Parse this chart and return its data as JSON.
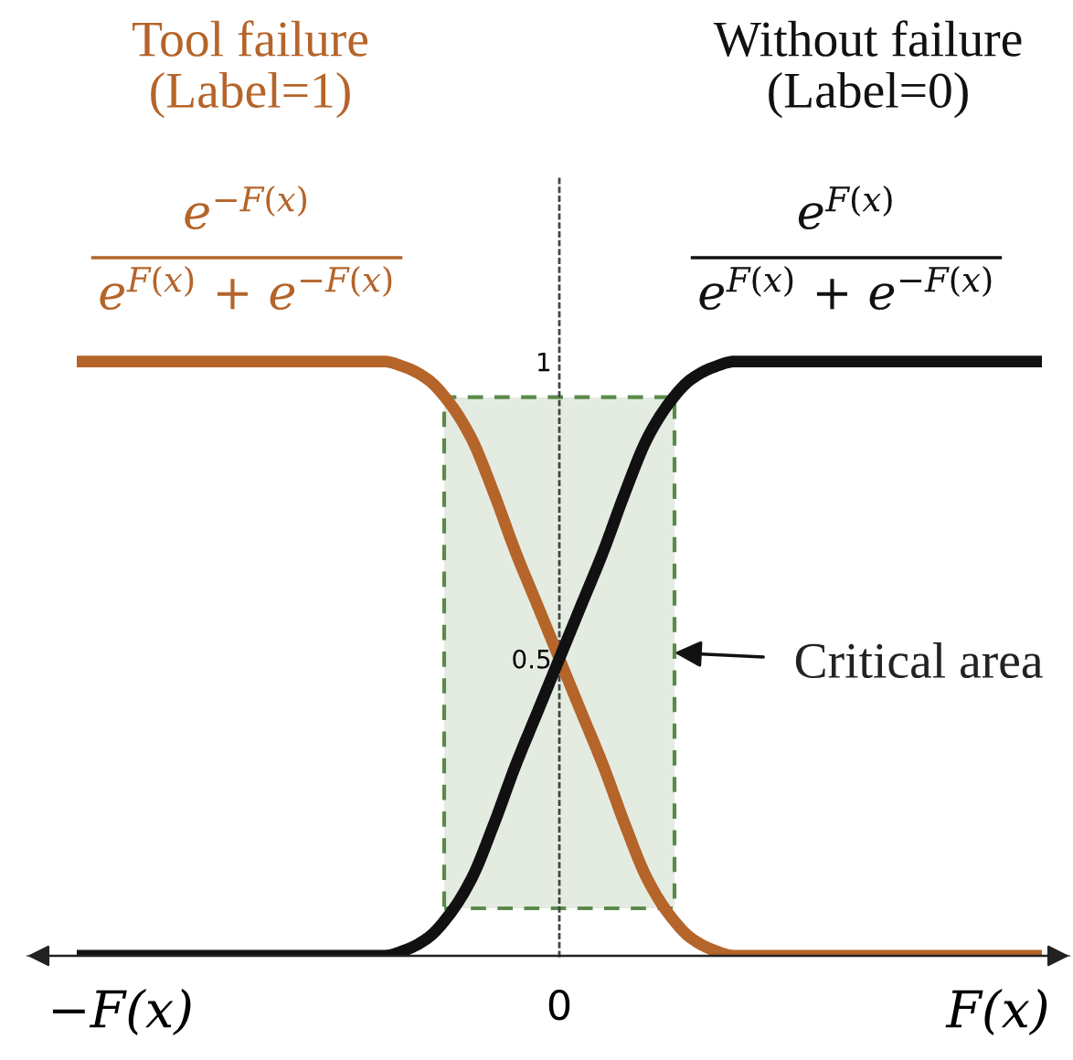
{
  "chart_data": {
    "type": "line",
    "categories": [
      null,
      null,
      "−F(x)",
      null,
      null,
      null,
      null,
      null,
      null,
      null,
      null,
      null,
      null,
      null,
      null,
      null,
      null,
      null,
      null,
      null,
      null,
      null,
      "0",
      null,
      null,
      null,
      null,
      null,
      null,
      null,
      null,
      null,
      null,
      null,
      null,
      null,
      null,
      null,
      null,
      null,
      null,
      null,
      "F(x)",
      null,
      null
    ],
    "series": [
      {
        "name": "Tool failure\n(Label=1)",
        "color": "#b5642a",
        "values": [
          1,
          1,
          1,
          1,
          1,
          1,
          1,
          1,
          1,
          1,
          1,
          1,
          1,
          1,
          1,
          0.99,
          0.97,
          0.93,
          0.87,
          0.78,
          0.68,
          0.59,
          0.5,
          0.41,
          0.32,
          0.22,
          0.13,
          0.07,
          0.03,
          0.01,
          0,
          0,
          0,
          0,
          0,
          0,
          0,
          0,
          0,
          0,
          0,
          0,
          0,
          0,
          0
        ]
      },
      {
        "name": "Without failure\n(Label=0)",
        "color": "#111111",
        "values": [
          0,
          0,
          0,
          0,
          0,
          0,
          0,
          0,
          0,
          0,
          0,
          0,
          0,
          0,
          0,
          0.01,
          0.03,
          0.07,
          0.13,
          0.22,
          0.32,
          0.41,
          0.5,
          0.59,
          0.68,
          0.78,
          0.87,
          0.93,
          0.97,
          0.99,
          1,
          1,
          1,
          1,
          1,
          1,
          1,
          1,
          1,
          1,
          1,
          1,
          1,
          1,
          1
        ]
      }
    ],
    "ylim": [
      0,
      1.31
    ],
    "yticks": [
      0.5,
      1
    ],
    "bands": [
      {
        "axis": "y",
        "from": 0.08,
        "to": 0.94,
        "label": "Critical area",
        "color": "#5a8a4a"
      }
    ],
    "annotations": [
      "e$^{−F(x)}$",
      "e$^{F(x)}$ + e$^{−F(x)}$",
      "e$^{F(x)}$",
      "e$^{F(x)}$ + e$^{−F(x)}$"
    ]
  }
}
